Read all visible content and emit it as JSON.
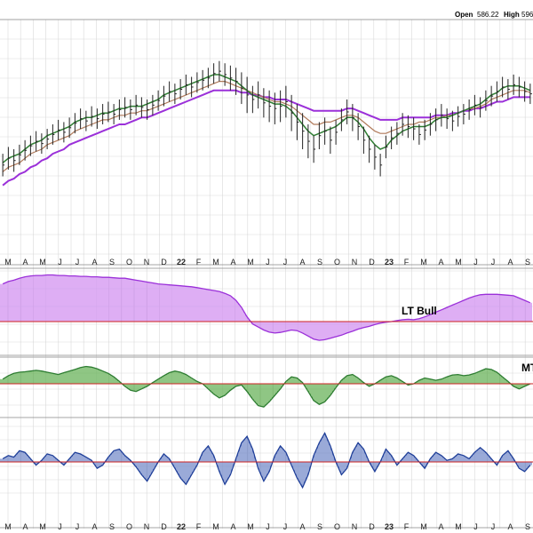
{
  "header": {
    "open_label": "Open",
    "open_value": "586.22",
    "high_label": "High",
    "high_value": "596"
  },
  "colors": {
    "grid": "#d9d9d9",
    "price_bar": "#222222",
    "ma_green": "#2e7d32",
    "ma_brown": "#b07a5a",
    "ma_purple": "#9b30d9",
    "lt_fill": "#cf8cf0",
    "lt_stroke": "#9b30d9",
    "mt_fill": "#5fae4f",
    "mt_stroke": "#2e7d32",
    "st_fill": "#6f86c7",
    "st_stroke": "#1f3f99",
    "zero_line": "#cc2222",
    "lt_label": "#1b7a1b",
    "mt_label": "#1b7a1b"
  },
  "chart_data": {
    "type": "line",
    "x_ticks": [
      "M",
      "A",
      "M",
      "J",
      "J",
      "A",
      "S",
      "O",
      "N",
      "D",
      "22",
      "F",
      "M",
      "A",
      "M",
      "J",
      "J",
      "A",
      "S",
      "O",
      "N",
      "D",
      "23",
      "F",
      "M",
      "A",
      "M",
      "J",
      "J",
      "A",
      "S"
    ],
    "price_panel": {
      "bars_high": [
        0.42,
        0.45,
        0.44,
        0.46,
        0.48,
        0.5,
        0.52,
        0.51,
        0.53,
        0.55,
        0.57,
        0.56,
        0.58,
        0.6,
        0.62,
        0.61,
        0.63,
        0.62,
        0.64,
        0.65,
        0.64,
        0.66,
        0.67,
        0.66,
        0.68,
        0.67,
        0.66,
        0.68,
        0.7,
        0.72,
        0.74,
        0.73,
        0.75,
        0.77,
        0.76,
        0.78,
        0.79,
        0.8,
        0.82,
        0.83,
        0.82,
        0.81,
        0.8,
        0.78,
        0.76,
        0.72,
        0.74,
        0.71,
        0.7,
        0.69,
        0.7,
        0.72,
        0.68,
        0.64,
        0.6,
        0.55,
        0.5,
        0.56,
        0.58,
        0.54,
        0.57,
        0.62,
        0.66,
        0.64,
        0.6,
        0.54,
        0.5,
        0.46,
        0.42,
        0.5,
        0.54,
        0.56,
        0.6,
        0.59,
        0.58,
        0.55,
        0.57,
        0.6,
        0.62,
        0.64,
        0.62,
        0.61,
        0.63,
        0.64,
        0.66,
        0.68,
        0.67,
        0.7,
        0.72,
        0.74,
        0.76,
        0.75,
        0.77,
        0.76,
        0.74,
        0.73
      ],
      "bars_low": [
        0.32,
        0.35,
        0.34,
        0.37,
        0.39,
        0.41,
        0.43,
        0.42,
        0.44,
        0.46,
        0.48,
        0.47,
        0.49,
        0.51,
        0.53,
        0.52,
        0.54,
        0.53,
        0.55,
        0.56,
        0.55,
        0.57,
        0.58,
        0.57,
        0.59,
        0.58,
        0.57,
        0.59,
        0.61,
        0.63,
        0.65,
        0.64,
        0.66,
        0.68,
        0.67,
        0.69,
        0.7,
        0.71,
        0.73,
        0.74,
        0.72,
        0.7,
        0.68,
        0.64,
        0.6,
        0.6,
        0.62,
        0.58,
        0.56,
        0.55,
        0.56,
        0.58,
        0.52,
        0.48,
        0.44,
        0.4,
        0.38,
        0.44,
        0.46,
        0.42,
        0.46,
        0.52,
        0.55,
        0.52,
        0.48,
        0.42,
        0.38,
        0.35,
        0.32,
        0.4,
        0.44,
        0.46,
        0.5,
        0.49,
        0.48,
        0.46,
        0.48,
        0.5,
        0.52,
        0.54,
        0.53,
        0.52,
        0.54,
        0.55,
        0.57,
        0.59,
        0.58,
        0.61,
        0.63,
        0.65,
        0.67,
        0.66,
        0.68,
        0.67,
        0.65,
        0.64
      ],
      "ma_short": [
        0.38,
        0.4,
        0.41,
        0.42,
        0.44,
        0.46,
        0.47,
        0.48,
        0.5,
        0.51,
        0.52,
        0.53,
        0.54,
        0.56,
        0.57,
        0.58,
        0.58,
        0.59,
        0.6,
        0.6,
        0.61,
        0.62,
        0.62,
        0.63,
        0.63,
        0.63,
        0.64,
        0.65,
        0.66,
        0.68,
        0.69,
        0.7,
        0.71,
        0.72,
        0.73,
        0.74,
        0.75,
        0.76,
        0.77,
        0.77,
        0.76,
        0.75,
        0.74,
        0.72,
        0.7,
        0.68,
        0.67,
        0.66,
        0.65,
        0.64,
        0.64,
        0.63,
        0.61,
        0.58,
        0.55,
        0.52,
        0.5,
        0.51,
        0.52,
        0.53,
        0.54,
        0.56,
        0.58,
        0.58,
        0.56,
        0.53,
        0.49,
        0.46,
        0.44,
        0.45,
        0.48,
        0.5,
        0.52,
        0.53,
        0.54,
        0.54,
        0.54,
        0.55,
        0.57,
        0.58,
        0.58,
        0.59,
        0.6,
        0.61,
        0.62,
        0.63,
        0.64,
        0.66,
        0.68,
        0.69,
        0.71,
        0.72,
        0.72,
        0.72,
        0.71,
        0.7
      ],
      "ma_mid": [
        0.34,
        0.36,
        0.37,
        0.38,
        0.4,
        0.42,
        0.43,
        0.44,
        0.46,
        0.47,
        0.48,
        0.49,
        0.5,
        0.52,
        0.53,
        0.54,
        0.55,
        0.56,
        0.57,
        0.57,
        0.58,
        0.59,
        0.59,
        0.6,
        0.6,
        0.61,
        0.61,
        0.62,
        0.63,
        0.64,
        0.65,
        0.66,
        0.67,
        0.68,
        0.69,
        0.7,
        0.71,
        0.72,
        0.73,
        0.74,
        0.74,
        0.73,
        0.72,
        0.71,
        0.7,
        0.69,
        0.68,
        0.67,
        0.66,
        0.65,
        0.65,
        0.64,
        0.63,
        0.61,
        0.59,
        0.57,
        0.55,
        0.55,
        0.56,
        0.56,
        0.57,
        0.58,
        0.59,
        0.59,
        0.58,
        0.56,
        0.54,
        0.52,
        0.51,
        0.51,
        0.52,
        0.53,
        0.54,
        0.55,
        0.55,
        0.56,
        0.56,
        0.57,
        0.58,
        0.58,
        0.59,
        0.59,
        0.6,
        0.61,
        0.62,
        0.62,
        0.63,
        0.64,
        0.66,
        0.67,
        0.68,
        0.69,
        0.7,
        0.7,
        0.7,
        0.69
      ],
      "ma_long": [
        0.28,
        0.3,
        0.31,
        0.33,
        0.34,
        0.36,
        0.37,
        0.39,
        0.4,
        0.42,
        0.43,
        0.44,
        0.46,
        0.47,
        0.48,
        0.49,
        0.5,
        0.51,
        0.52,
        0.53,
        0.54,
        0.55,
        0.55,
        0.56,
        0.57,
        0.58,
        0.58,
        0.59,
        0.6,
        0.61,
        0.62,
        0.63,
        0.64,
        0.65,
        0.66,
        0.67,
        0.68,
        0.69,
        0.7,
        0.7,
        0.7,
        0.7,
        0.7,
        0.69,
        0.69,
        0.68,
        0.68,
        0.67,
        0.67,
        0.66,
        0.66,
        0.66,
        0.65,
        0.64,
        0.63,
        0.62,
        0.61,
        0.61,
        0.61,
        0.61,
        0.61,
        0.61,
        0.62,
        0.62,
        0.61,
        0.6,
        0.59,
        0.58,
        0.57,
        0.57,
        0.57,
        0.57,
        0.58,
        0.58,
        0.58,
        0.58,
        0.58,
        0.58,
        0.59,
        0.59,
        0.59,
        0.6,
        0.6,
        0.61,
        0.61,
        0.62,
        0.62,
        0.63,
        0.64,
        0.65,
        0.65,
        0.66,
        0.67,
        0.67,
        0.67,
        0.67
      ]
    },
    "lt_panel": {
      "label": "LT Bull",
      "values": [
        0.8,
        0.85,
        0.88,
        0.92,
        0.95,
        0.97,
        0.98,
        0.98,
        0.99,
        0.99,
        0.98,
        0.98,
        0.97,
        0.97,
        0.96,
        0.96,
        0.95,
        0.95,
        0.94,
        0.94,
        0.93,
        0.92,
        0.92,
        0.9,
        0.88,
        0.86,
        0.84,
        0.82,
        0.8,
        0.79,
        0.78,
        0.77,
        0.76,
        0.75,
        0.74,
        0.72,
        0.7,
        0.68,
        0.66,
        0.64,
        0.6,
        0.55,
        0.45,
        0.3,
        0.1,
        -0.08,
        -0.18,
        -0.28,
        -0.35,
        -0.38,
        -0.36,
        -0.32,
        -0.28,
        -0.3,
        -0.38,
        -0.48,
        -0.58,
        -0.62,
        -0.6,
        -0.55,
        -0.5,
        -0.45,
        -0.38,
        -0.32,
        -0.25,
        -0.2,
        -0.16,
        -0.1,
        -0.05,
        -0.02,
        0.0,
        0.02,
        0.04,
        0.05,
        0.04,
        0.06,
        0.1,
        0.15,
        0.2,
        0.25,
        0.3,
        0.35,
        0.4,
        0.45,
        0.5,
        0.54,
        0.57,
        0.58,
        0.58,
        0.58,
        0.57,
        0.56,
        0.55,
        0.5,
        0.45,
        0.4
      ]
    },
    "mt_panel": {
      "label": "MT",
      "values": [
        0.2,
        0.35,
        0.45,
        0.5,
        0.52,
        0.55,
        0.58,
        0.55,
        0.5,
        0.45,
        0.4,
        0.48,
        0.55,
        0.62,
        0.7,
        0.75,
        0.72,
        0.65,
        0.55,
        0.45,
        0.3,
        0.1,
        -0.1,
        -0.25,
        -0.3,
        -0.2,
        -0.1,
        0.05,
        0.2,
        0.35,
        0.48,
        0.55,
        0.5,
        0.4,
        0.25,
        0.1,
        0.0,
        -0.2,
        -0.4,
        -0.55,
        -0.45,
        -0.25,
        -0.1,
        -0.05,
        -0.3,
        -0.6,
        -0.85,
        -0.9,
        -0.7,
        -0.45,
        -0.2,
        0.1,
        0.3,
        0.25,
        0.05,
        -0.3,
        -0.65,
        -0.8,
        -0.7,
        -0.45,
        -0.15,
        0.15,
        0.35,
        0.4,
        0.25,
        0.05,
        -0.1,
        0.0,
        0.15,
        0.3,
        0.35,
        0.25,
        0.1,
        -0.05,
        0.0,
        0.15,
        0.25,
        0.2,
        0.15,
        0.2,
        0.3,
        0.38,
        0.4,
        0.35,
        0.38,
        0.45,
        0.55,
        0.65,
        0.62,
        0.5,
        0.3,
        0.1,
        -0.1,
        -0.2,
        -0.1,
        0.0
      ]
    },
    "st_panel": {
      "values": [
        0.1,
        0.2,
        0.15,
        0.35,
        0.3,
        0.1,
        -0.1,
        0.05,
        0.25,
        0.2,
        0.05,
        -0.1,
        0.1,
        0.3,
        0.25,
        0.15,
        0.05,
        -0.2,
        -0.1,
        0.15,
        0.35,
        0.4,
        0.2,
        0.05,
        -0.15,
        -0.4,
        -0.6,
        -0.3,
        0.0,
        0.25,
        0.1,
        -0.2,
        -0.5,
        -0.7,
        -0.4,
        -0.1,
        0.3,
        0.5,
        0.2,
        -0.3,
        -0.7,
        -0.4,
        0.1,
        0.6,
        0.8,
        0.4,
        -0.2,
        -0.6,
        -0.3,
        0.2,
        0.5,
        0.3,
        -0.1,
        -0.5,
        -0.8,
        -0.4,
        0.2,
        0.6,
        0.9,
        0.5,
        0.0,
        -0.4,
        -0.2,
        0.3,
        0.6,
        0.4,
        0.0,
        -0.3,
        0.0,
        0.4,
        0.2,
        -0.1,
        0.1,
        0.3,
        0.2,
        0.0,
        -0.2,
        0.1,
        0.3,
        0.2,
        0.05,
        0.1,
        0.25,
        0.2,
        0.1,
        0.3,
        0.45,
        0.3,
        0.1,
        -0.1,
        0.2,
        0.35,
        0.1,
        -0.2,
        -0.3,
        -0.1
      ]
    }
  }
}
